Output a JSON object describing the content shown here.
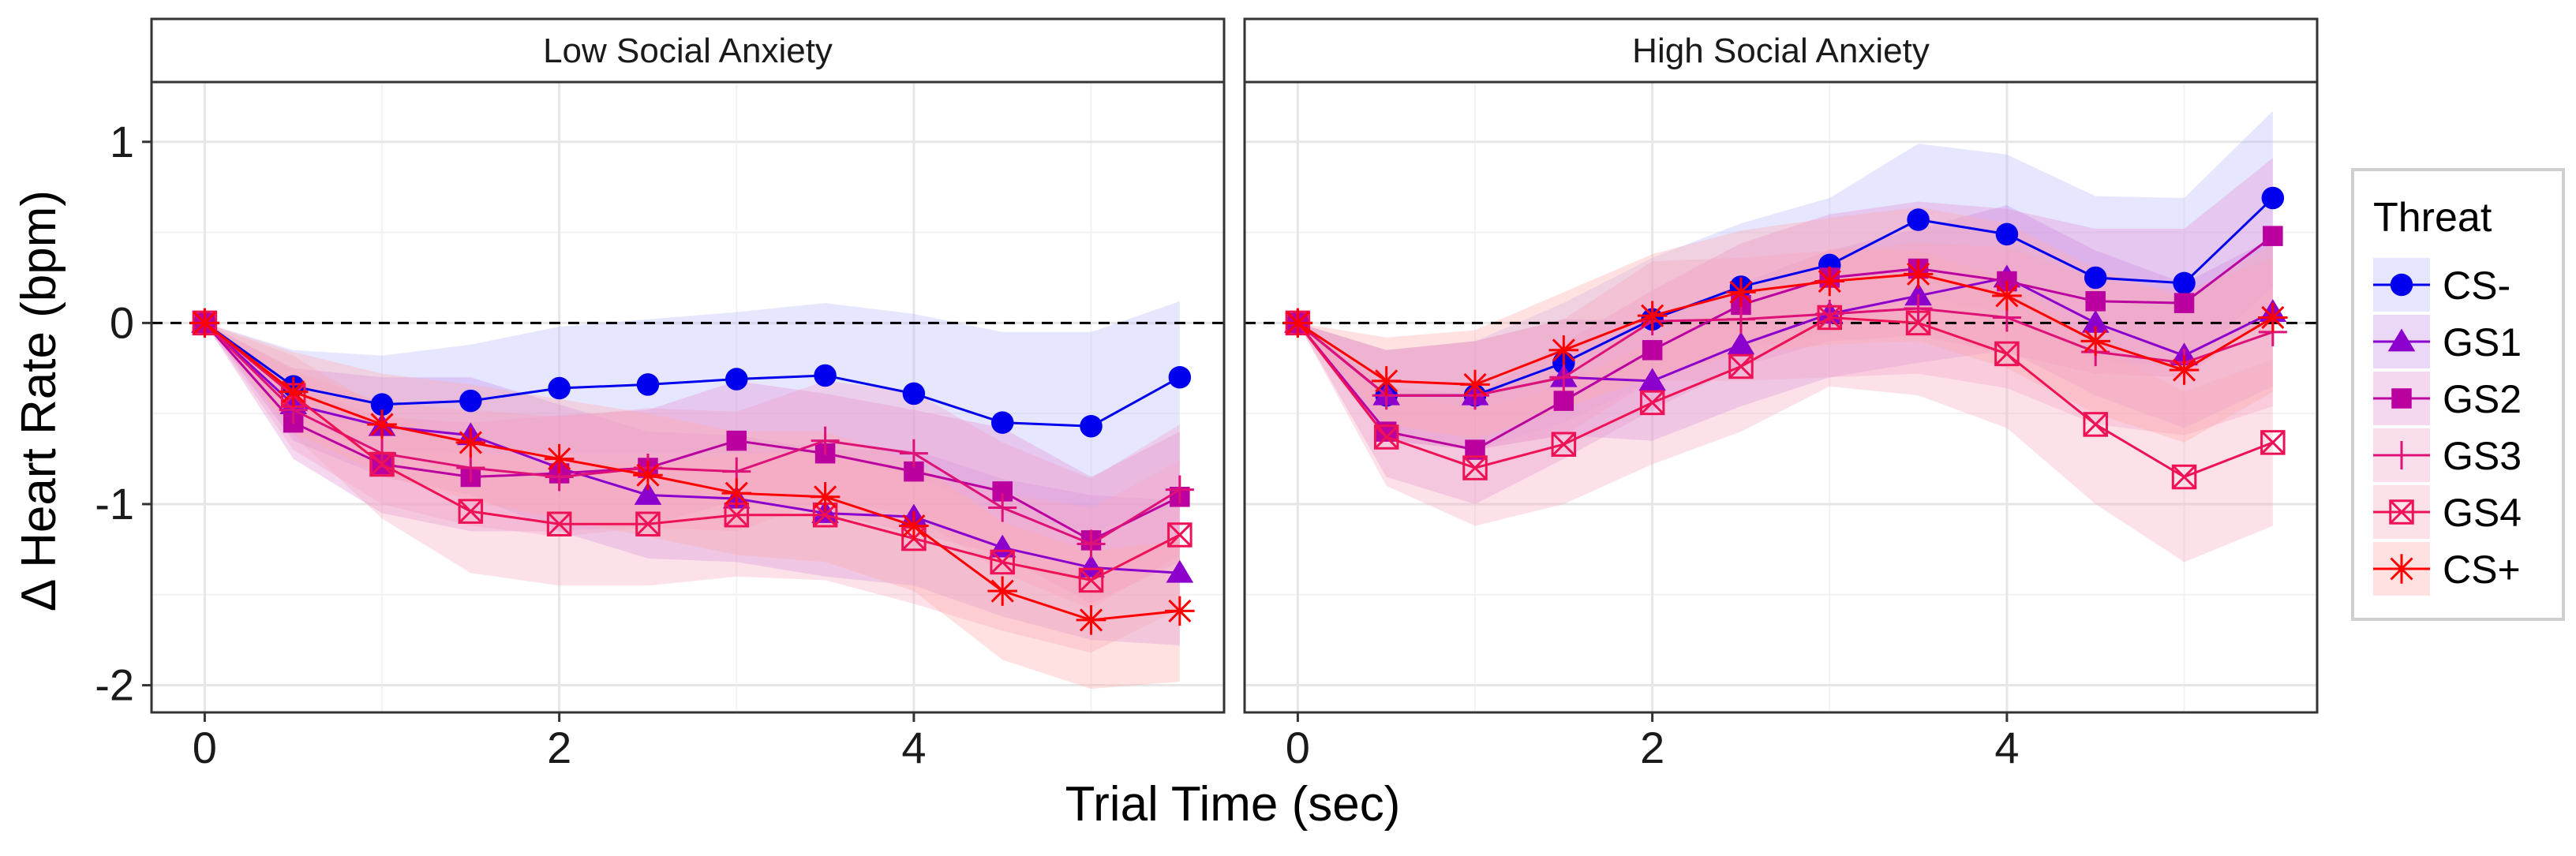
{
  "chart_data": {
    "type": "line",
    "xlabel": "Trial Time (sec)",
    "ylabel": "Δ Heart Rate (bpm)",
    "xlim": [
      -0.3,
      5.75
    ],
    "ylim": [
      -2.15,
      1.33
    ],
    "x_ticks": [
      0,
      2,
      4
    ],
    "x_tick_labels": [
      "0",
      "2",
      "4"
    ],
    "y_ticks": [
      1,
      0,
      -1,
      -2
    ],
    "y_tick_labels": [
      "1",
      "0",
      "-1",
      "-2"
    ],
    "reference_line": 0,
    "grid": true,
    "legend": {
      "title": "Threat",
      "placement": "right",
      "entries": [
        "CS-",
        "GS1",
        "GS2",
        "GS3",
        "GS4",
        "CS+"
      ]
    },
    "x": [
      0,
      0.5,
      1,
      1.5,
      2,
      2.5,
      3,
      3.5,
      4,
      4.5,
      5,
      5.5
    ],
    "series_style": [
      {
        "name": "CS-",
        "color": "#0000ee",
        "band": "#b8b8ff",
        "marker": "circle"
      },
      {
        "name": "GS1",
        "color": "#8b00cc",
        "band": "#c58be8",
        "marker": "triangle"
      },
      {
        "name": "GS2",
        "color": "#bb00a0",
        "band": "#e38bd4",
        "marker": "square"
      },
      {
        "name": "GS3",
        "color": "#dd1177",
        "band": "#f3a0c8",
        "marker": "plus"
      },
      {
        "name": "GS4",
        "color": "#ee1155",
        "band": "#f7a8bf",
        "marker": "boxed-x"
      },
      {
        "name": "CS+",
        "color": "#ff0000",
        "band": "#ffa8a8",
        "marker": "asterisk"
      }
    ],
    "panels": [
      {
        "title": "Low Social Anxiety",
        "series": [
          {
            "name": "CS-",
            "values": [
              0,
              -0.35,
              -0.45,
              -0.43,
              -0.36,
              -0.34,
              -0.31,
              -0.29,
              -0.39,
              -0.55,
              -0.57,
              -0.3
            ],
            "lower": [
              0,
              -0.55,
              -0.7,
              -0.72,
              -0.72,
              -0.72,
              -0.72,
              -0.72,
              -0.85,
              -1.05,
              -1.15,
              -1.0
            ],
            "upper": [
              0,
              -0.15,
              -0.18,
              -0.12,
              -0.02,
              0.02,
              0.06,
              0.11,
              0.05,
              -0.05,
              -0.05,
              0.12
            ]
          },
          {
            "name": "GS1",
            "values": [
              0,
              -0.45,
              -0.57,
              -0.62,
              -0.8,
              -0.95,
              -0.97,
              -1.05,
              -1.07,
              -1.24,
              -1.35,
              -1.38
            ],
            "lower": [
              0,
              -0.65,
              -0.85,
              -0.95,
              -1.15,
              -1.3,
              -1.32,
              -1.4,
              -1.45,
              -1.62,
              -1.75,
              -1.78
            ],
            "upper": [
              0,
              -0.25,
              -0.3,
              -0.3,
              -0.45,
              -0.6,
              -0.62,
              -0.7,
              -0.7,
              -0.86,
              -0.95,
              -0.98
            ]
          },
          {
            "name": "GS2",
            "values": [
              0,
              -0.55,
              -0.78,
              -0.85,
              -0.83,
              -0.8,
              -0.65,
              -0.72,
              -0.82,
              -0.93,
              -1.2,
              -0.96
            ],
            "lower": [
              0,
              -0.75,
              -1.05,
              -1.15,
              -1.15,
              -1.12,
              -0.98,
              -1.05,
              -1.16,
              -1.28,
              -1.55,
              -1.32
            ],
            "upper": [
              0,
              -0.35,
              -0.52,
              -0.55,
              -0.51,
              -0.48,
              -0.32,
              -0.39,
              -0.48,
              -0.58,
              -0.85,
              -0.6
            ]
          },
          {
            "name": "GS3",
            "values": [
              0,
              -0.48,
              -0.72,
              -0.8,
              -0.85,
              -0.8,
              -0.82,
              -0.65,
              -0.72,
              -1.02,
              -1.22,
              -0.92
            ],
            "lower": [
              0,
              -0.7,
              -1.0,
              -1.12,
              -1.18,
              -1.13,
              -1.15,
              -0.98,
              -1.06,
              -1.38,
              -1.58,
              -1.28
            ],
            "upper": [
              0,
              -0.26,
              -0.44,
              -0.48,
              -0.52,
              -0.47,
              -0.49,
              -0.32,
              -0.38,
              -0.66,
              -0.86,
              -0.56
            ]
          },
          {
            "name": "GS4",
            "values": [
              0,
              -0.4,
              -0.78,
              -1.04,
              -1.11,
              -1.11,
              -1.06,
              -1.06,
              -1.19,
              -1.32,
              -1.42,
              -1.17
            ],
            "lower": [
              0,
              -0.62,
              -1.08,
              -1.38,
              -1.45,
              -1.45,
              -1.4,
              -1.42,
              -1.55,
              -1.7,
              -1.82,
              -1.58
            ],
            "upper": [
              0,
              -0.18,
              -0.48,
              -0.7,
              -0.77,
              -0.77,
              -0.72,
              -0.7,
              -0.83,
              -0.94,
              -1.02,
              -0.76
            ]
          },
          {
            "name": "CS+",
            "values": [
              0,
              -0.38,
              -0.56,
              -0.66,
              -0.75,
              -0.84,
              -0.94,
              -0.96,
              -1.12,
              -1.48,
              -1.64,
              -1.59
            ],
            "lower": [
              0,
              -0.6,
              -0.84,
              -0.98,
              -1.08,
              -1.18,
              -1.28,
              -1.32,
              -1.48,
              -1.86,
              -2.02,
              -1.98
            ],
            "upper": [
              0,
              -0.16,
              -0.28,
              -0.34,
              -0.42,
              -0.5,
              -0.6,
              -0.6,
              -0.76,
              -1.1,
              -1.26,
              -1.2
            ]
          }
        ]
      },
      {
        "title": "High Social Anxiety",
        "series": [
          {
            "name": "CS-",
            "values": [
              0,
              -0.4,
              -0.4,
              -0.22,
              0.02,
              0.2,
              0.32,
              0.57,
              0.49,
              0.25,
              0.22,
              0.69
            ],
            "lower": [
              0,
              -0.65,
              -0.7,
              -0.55,
              -0.32,
              -0.15,
              -0.05,
              0.15,
              0.05,
              -0.2,
              -0.25,
              0.2
            ],
            "upper": [
              0,
              -0.15,
              -0.1,
              0.11,
              0.36,
              0.55,
              0.69,
              0.99,
              0.93,
              0.7,
              0.69,
              1.17
            ]
          },
          {
            "name": "GS1",
            "values": [
              0,
              -0.4,
              -0.4,
              -0.3,
              -0.32,
              -0.12,
              0.05,
              0.15,
              0.25,
              0.0,
              -0.18,
              0.06
            ],
            "lower": [
              0,
              -0.65,
              -0.7,
              -0.62,
              -0.65,
              -0.46,
              -0.3,
              -0.22,
              -0.15,
              -0.4,
              -0.58,
              -0.35
            ],
            "upper": [
              0,
              -0.15,
              -0.1,
              0.02,
              0.01,
              0.22,
              0.4,
              0.52,
              0.65,
              0.4,
              0.22,
              0.47
            ]
          },
          {
            "name": "GS2",
            "values": [
              0,
              -0.6,
              -0.7,
              -0.43,
              -0.15,
              0.1,
              0.25,
              0.3,
              0.23,
              0.12,
              0.11,
              0.48
            ],
            "lower": [
              0,
              -0.85,
              -1.0,
              -0.75,
              -0.48,
              -0.24,
              -0.1,
              -0.07,
              -0.17,
              -0.28,
              -0.3,
              0.05
            ],
            "upper": [
              0,
              -0.35,
              -0.4,
              -0.11,
              0.18,
              0.44,
              0.6,
              0.67,
              0.63,
              0.52,
              0.52,
              0.91
            ]
          },
          {
            "name": "GS3",
            "values": [
              0,
              -0.4,
              -0.4,
              -0.3,
              0.01,
              0.02,
              0.05,
              0.08,
              0.03,
              -0.16,
              -0.22,
              -0.05
            ],
            "lower": [
              0,
              -0.65,
              -0.7,
              -0.62,
              -0.32,
              -0.32,
              -0.3,
              -0.28,
              -0.36,
              -0.56,
              -0.62,
              -0.46
            ],
            "upper": [
              0,
              -0.15,
              -0.1,
              0.02,
              0.34,
              0.36,
              0.4,
              0.44,
              0.42,
              0.24,
              0.18,
              0.36
            ]
          },
          {
            "name": "GS4",
            "values": [
              0,
              -0.63,
              -0.8,
              -0.67,
              -0.44,
              -0.24,
              0.03,
              0.0,
              -0.17,
              -0.56,
              -0.85,
              -0.66
            ],
            "lower": [
              0,
              -0.9,
              -1.12,
              -1.0,
              -0.78,
              -0.6,
              -0.35,
              -0.4,
              -0.58,
              -1.0,
              -1.32,
              -1.12
            ],
            "upper": [
              0,
              -0.36,
              -0.48,
              -0.34,
              -0.1,
              0.12,
              0.41,
              0.4,
              0.24,
              -0.12,
              -0.38,
              -0.2
            ]
          },
          {
            "name": "CS+",
            "values": [
              0,
              -0.32,
              -0.34,
              -0.15,
              0.04,
              0.17,
              0.23,
              0.27,
              0.15,
              -0.1,
              -0.26,
              0.03
            ],
            "lower": [
              0,
              -0.56,
              -0.64,
              -0.47,
              -0.3,
              -0.17,
              -0.12,
              -0.1,
              -0.25,
              -0.5,
              -0.66,
              -0.38
            ],
            "upper": [
              0,
              -0.08,
              -0.04,
              0.17,
              0.38,
              0.51,
              0.58,
              0.64,
              0.55,
              0.3,
              0.14,
              0.44
            ]
          }
        ]
      }
    ]
  }
}
